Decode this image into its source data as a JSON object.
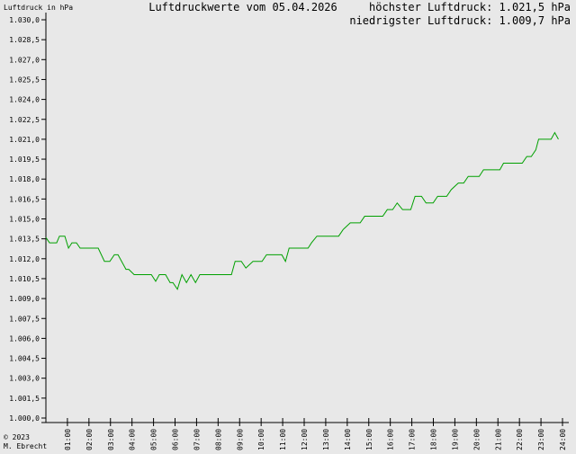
{
  "chart_data": {
    "type": "line",
    "title": "Luftdruckwerte vom 05.04.2026",
    "y_label": "Luftdruck in hPa",
    "annotations": [
      "höchster Luftdruck: 1.021,5 hPa",
      "niedrigster Luftdruck: 1.009,7 hPa"
    ],
    "credits": [
      "© 2023",
      "M. Ebrecht"
    ],
    "xlim": [
      0,
      24
    ],
    "ylim": [
      1000,
      1030
    ],
    "xticks": [
      {
        "value": 1,
        "label": "01:00"
      },
      {
        "value": 2,
        "label": "02:00"
      },
      {
        "value": 3,
        "label": "03:00"
      },
      {
        "value": 4,
        "label": "04:00"
      },
      {
        "value": 5,
        "label": "05:00"
      },
      {
        "value": 6,
        "label": "06:00"
      },
      {
        "value": 7,
        "label": "07:00"
      },
      {
        "value": 8,
        "label": "08:00"
      },
      {
        "value": 9,
        "label": "09:00"
      },
      {
        "value": 10,
        "label": "10:00"
      },
      {
        "value": 11,
        "label": "11:00"
      },
      {
        "value": 12,
        "label": "12:00"
      },
      {
        "value": 13,
        "label": "13:00"
      },
      {
        "value": 14,
        "label": "14:00"
      },
      {
        "value": 15,
        "label": "15:00"
      },
      {
        "value": 16,
        "label": "16:00"
      },
      {
        "value": 17,
        "label": "17:00"
      },
      {
        "value": 18,
        "label": "18:00"
      },
      {
        "value": 19,
        "label": "19:00"
      },
      {
        "value": 20,
        "label": "20:00"
      },
      {
        "value": 21,
        "label": "21:00"
      },
      {
        "value": 22,
        "label": "22:00"
      },
      {
        "value": 23,
        "label": "23:00"
      },
      {
        "value": 24,
        "label": "24:00"
      }
    ],
    "yticks": [
      {
        "value": 1000,
        "label": "1.000,0"
      },
      {
        "value": 1001.5,
        "label": "1.001,5"
      },
      {
        "value": 1003,
        "label": "1.003,0"
      },
      {
        "value": 1004.5,
        "label": "1.004,5"
      },
      {
        "value": 1006,
        "label": "1.006,0"
      },
      {
        "value": 1007.5,
        "label": "1.007,5"
      },
      {
        "value": 1009,
        "label": "1.009,0"
      },
      {
        "value": 1010.5,
        "label": "1.010,5"
      },
      {
        "value": 1012,
        "label": "1.012,0"
      },
      {
        "value": 1013.5,
        "label": "1.013,5"
      },
      {
        "value": 1015,
        "label": "1.015,0"
      },
      {
        "value": 1016.5,
        "label": "1.016,5"
      },
      {
        "value": 1018,
        "label": "1.018,0"
      },
      {
        "value": 1019.5,
        "label": "1.019,5"
      },
      {
        "value": 1021,
        "label": "1.021,0"
      },
      {
        "value": 1022.5,
        "label": "1.022,5"
      },
      {
        "value": 1024,
        "label": "1.024,0"
      },
      {
        "value": 1025.5,
        "label": "1.025,5"
      },
      {
        "value": 1027,
        "label": "1.027,0"
      },
      {
        "value": 1028.5,
        "label": "1.028,5"
      },
      {
        "value": 1030,
        "label": "1.030,0"
      }
    ],
    "x": [
      0,
      0.17,
      0.5,
      0.63,
      0.88,
      1.05,
      1.21,
      1.42,
      1.59,
      2.43,
      2.72,
      2.97,
      3.18,
      3.35,
      3.72,
      3.85,
      4.1,
      4.9,
      5.1,
      5.27,
      5.56,
      5.77,
      5.9,
      6.11,
      6.32,
      6.53,
      6.74,
      6.95,
      7.15,
      8.62,
      8.79,
      9.08,
      9.29,
      9.62,
      10.04,
      10.25,
      10.96,
      11.13,
      11.3,
      12.18,
      12.34,
      12.59,
      13.6,
      13.81,
      14.14,
      14.6,
      14.81,
      15.65,
      15.86,
      16.11,
      16.32,
      16.57,
      16.95,
      17.15,
      17.45,
      17.66,
      17.99,
      18.2,
      18.62,
      18.83,
      19.16,
      19.41,
      19.62,
      20.13,
      20.33,
      21.09,
      21.26,
      22.13,
      22.34,
      22.55,
      22.76,
      22.89,
      23.47,
      23.64,
      23.81
    ],
    "series": [
      {
        "color": "#00a000",
        "values": [
          1013.6,
          1013.2,
          1013.2,
          1013.7,
          1013.7,
          1012.8,
          1013.2,
          1013.2,
          1012.8,
          1012.8,
          1011.8,
          1011.8,
          1012.3,
          1012.3,
          1011.2,
          1011.2,
          1010.8,
          1010.8,
          1010.3,
          1010.8,
          1010.8,
          1010.2,
          1010.2,
          1009.7,
          1010.8,
          1010.2,
          1010.8,
          1010.2,
          1010.8,
          1010.8,
          1011.8,
          1011.8,
          1011.3,
          1011.8,
          1011.8,
          1012.3,
          1012.3,
          1011.8,
          1012.8,
          1012.8,
          1013.2,
          1013.7,
          1013.7,
          1014.2,
          1014.7,
          1014.7,
          1015.2,
          1015.2,
          1015.7,
          1015.7,
          1016.2,
          1015.7,
          1015.7,
          1016.7,
          1016.7,
          1016.2,
          1016.2,
          1016.7,
          1016.7,
          1017.2,
          1017.7,
          1017.7,
          1018.2,
          1018.2,
          1018.7,
          1018.7,
          1019.2,
          1019.2,
          1019.7,
          1019.7,
          1020.2,
          1021.0,
          1021.0,
          1021.5,
          1021.0
        ]
      }
    ]
  }
}
